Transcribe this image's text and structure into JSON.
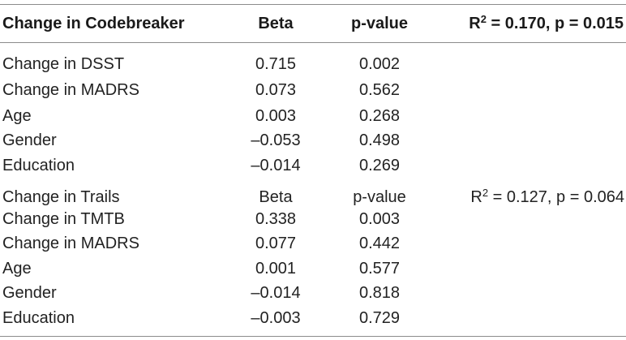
{
  "model1": {
    "header": {
      "label": "Change in Codebreaker",
      "beta": "Beta",
      "pvalue": "p-value",
      "stat_prefix": "R",
      "stat_exp": "2",
      "stat_rest": " = 0.170, p = 0.015"
    },
    "rows": [
      {
        "label": "Change in DSST",
        "beta": "0.715",
        "p": "0.002"
      },
      {
        "label": "Change in MADRS",
        "beta": "0.073",
        "p": "0.562"
      },
      {
        "label": "Age",
        "beta": "0.003",
        "p": "0.268"
      },
      {
        "label": "Gender",
        "beta": "–0.053",
        "p": "0.498"
      },
      {
        "label": "Education",
        "beta": "–0.014",
        "p": "0.269"
      }
    ]
  },
  "model2": {
    "header": {
      "label": "Change in Trails",
      "beta": "Beta",
      "pvalue": "p-value",
      "stat_prefix": "R",
      "stat_exp": "2",
      "stat_rest": " = 0.127, p = 0.064"
    },
    "rows": [
      {
        "label": "Change in TMTB",
        "beta": "0.338",
        "p": "0.003"
      },
      {
        "label": "Change in MADRS",
        "beta": "0.077",
        "p": "0.442"
      },
      {
        "label": "Age",
        "beta": "0.001",
        "p": "0.577"
      },
      {
        "label": "Gender",
        "beta": "–0.014",
        "p": "0.818"
      },
      {
        "label": "Education",
        "beta": "–0.003",
        "p": "0.729"
      }
    ]
  }
}
